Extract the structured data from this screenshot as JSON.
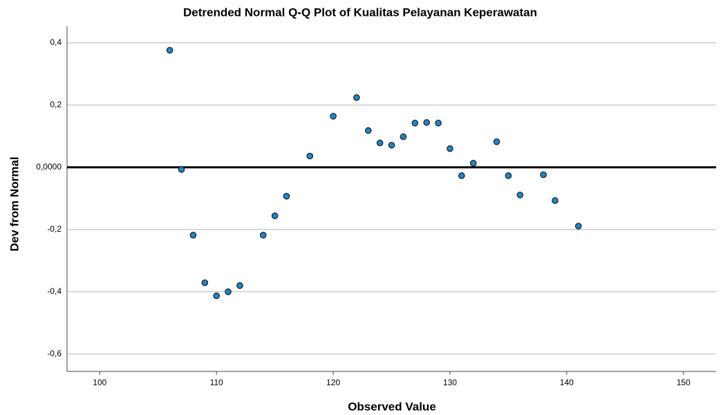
{
  "chart_data": {
    "type": "scatter",
    "title": "Detrended Normal Q-Q Plot of Kualitas Pelayanan Keperawatan",
    "x_label": "Observed Value",
    "y_label": "Dev from Normal",
    "xlim": [
      97.2,
      152.8
    ],
    "ylim": [
      -0.656,
      0.453
    ],
    "xticks": [
      100,
      110,
      120,
      130,
      140,
      150
    ],
    "yticks": [
      {
        "value": 0.4,
        "label": "0,4"
      },
      {
        "value": 0.2,
        "label": "0,2"
      },
      {
        "value": 0,
        "label": "0,0000"
      },
      {
        "value": -0.2,
        "label": "-0,2"
      },
      {
        "value": -0.4,
        "label": "-0,4"
      },
      {
        "value": -0.6,
        "label": "-0,6"
      }
    ],
    "grid": true,
    "reference_line": 0,
    "color": "#1f86c8",
    "x": [
      106,
      107,
      108,
      109,
      110,
      111,
      112,
      114,
      115,
      116,
      118,
      120,
      122,
      123,
      124,
      125,
      126,
      127,
      128,
      129,
      130,
      131,
      132,
      134,
      135,
      136,
      138,
      139,
      141
    ],
    "values": [
      0.376,
      -0.007,
      -0.218,
      -0.371,
      -0.413,
      -0.4,
      -0.38,
      -0.218,
      -0.156,
      -0.093,
      0.036,
      0.164,
      0.224,
      0.118,
      0.078,
      0.071,
      0.098,
      0.142,
      0.144,
      0.142,
      0.06,
      -0.027,
      0.013,
      0.082,
      -0.027,
      -0.089,
      -0.024,
      -0.107,
      -0.189
    ]
  }
}
